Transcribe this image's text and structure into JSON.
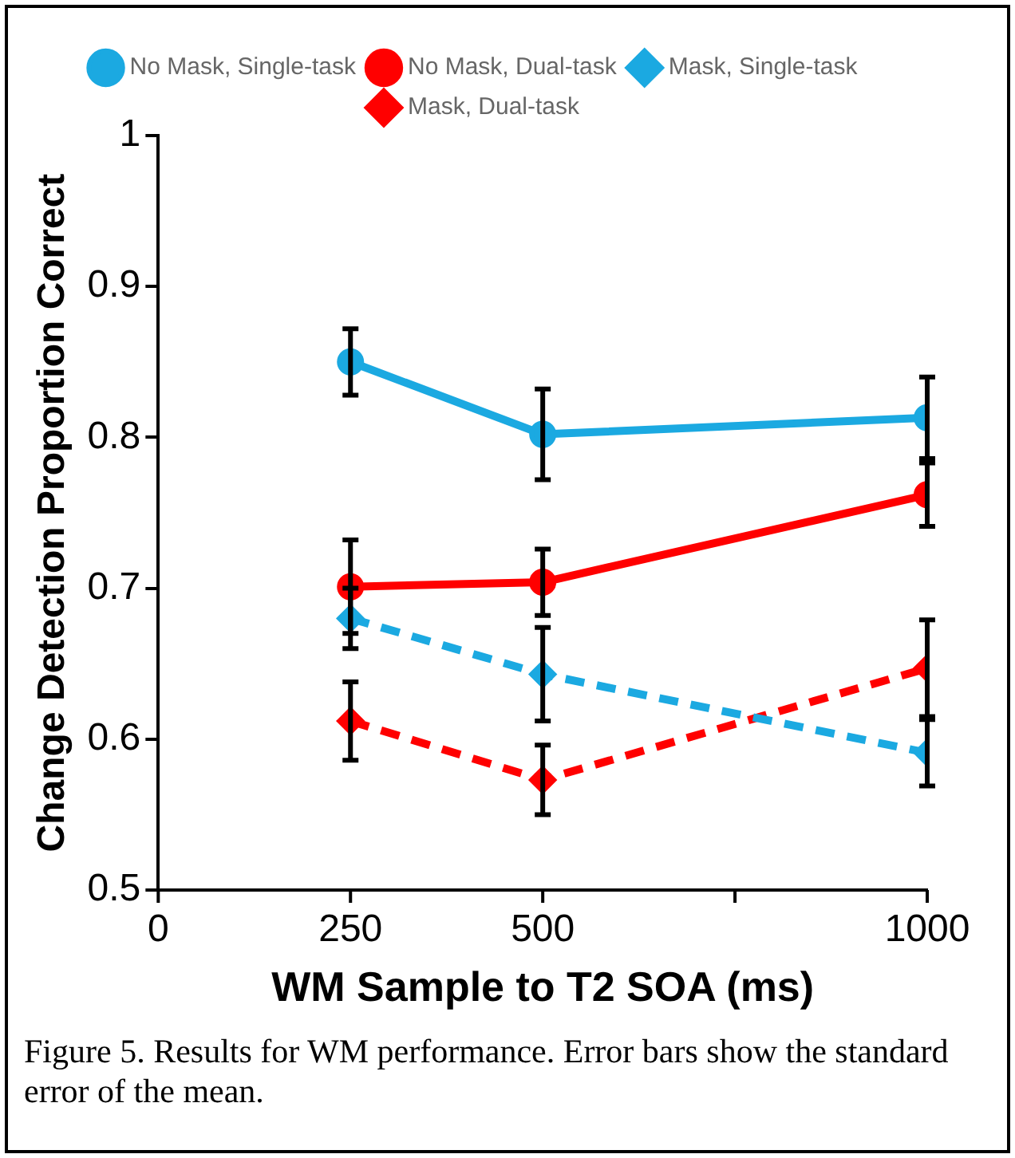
{
  "chart_data": {
    "type": "line",
    "xlabel": "WM Sample to T2 SOA (ms)",
    "ylabel": "Change Detection Proportion Correct",
    "x": [
      250,
      500,
      1000
    ],
    "series": [
      {
        "name": "No Mask, Single-task",
        "color": "#1ba9e1",
        "values": [
          0.85,
          0.802,
          0.813
        ],
        "errors": [
          0.022,
          0.03,
          0.027
        ],
        "marker": "circle",
        "line_style": "solid"
      },
      {
        "name": "No Mask, Dual-task",
        "color": "#ff0000",
        "values": [
          0.701,
          0.704,
          0.762
        ],
        "errors": [
          0.031,
          0.022,
          0.021
        ],
        "marker": "circle",
        "line_style": "solid"
      },
      {
        "name": "Mask, Single-task",
        "color": "#1ba9e1",
        "values": [
          0.68,
          0.643,
          0.591
        ],
        "errors": [
          0.02,
          0.031,
          0.022
        ],
        "marker": "diamond",
        "line_style": "dashed"
      },
      {
        "name": "Mask, Dual-task",
        "color": "#ff0000",
        "values": [
          0.612,
          0.573,
          0.647
        ],
        "errors": [
          0.026,
          0.023,
          0.032
        ],
        "marker": "diamond",
        "line_style": "dashed"
      }
    ],
    "xlim": [
      0,
      1000
    ],
    "xticks": [
      0,
      250,
      500,
      {
        "value": 750,
        "label": null
      },
      1000
    ],
    "ylim": [
      0.5,
      1
    ],
    "yticks": [
      0.5,
      0.6,
      0.7,
      0.8,
      0.9,
      1
    ],
    "grid": false,
    "legend": "top",
    "annotations": [
      "Figure 5. Results for WM performance. Error bars show the standard error of the mean."
    ]
  }
}
